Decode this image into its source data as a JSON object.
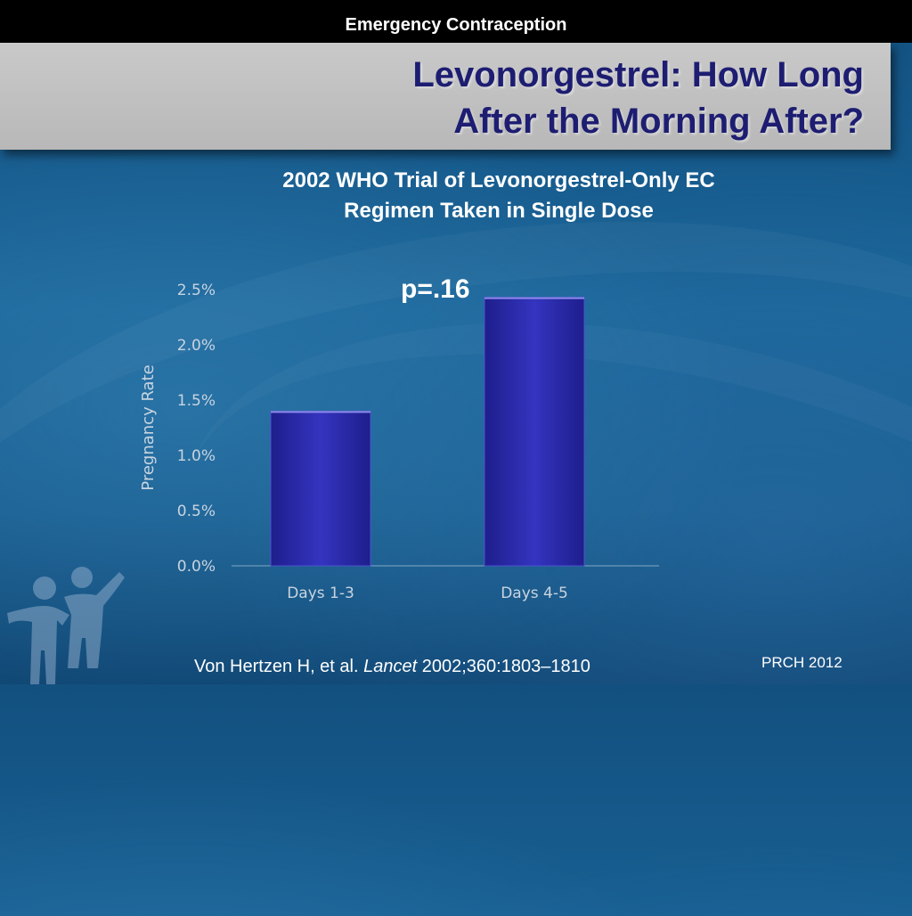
{
  "header": {
    "section": "Emergency Contraception",
    "title_line1": "Levonorgestrel: How Long",
    "title_line2": "After the Morning After?"
  },
  "chart_data": {
    "type": "bar",
    "title": "2002 WHO Trial of Levonorgestrel-Only EC Regimen Taken in Single Dose",
    "title_line1": "2002 WHO Trial of Levonorgestrel-Only EC",
    "title_line2": "Regimen Taken in Single Dose",
    "annotation": "p=.16",
    "categories": [
      "Days 1-3",
      "Days 4-5"
    ],
    "values": [
      1.4,
      2.43
    ],
    "ylabel": "Pregnancy Rate",
    "xlabel": "",
    "ylim": [
      0,
      2.5
    ],
    "yticks": [
      "0.0%",
      "0.5%",
      "1.0%",
      "1.5%",
      "2.0%",
      "2.5%"
    ],
    "ytick_values": [
      0,
      0.5,
      1.0,
      1.5,
      2.0,
      2.5
    ],
    "grid": false,
    "bar_color": "#2a2aa8",
    "text_color": "#c8d4e0"
  },
  "footer": {
    "citation_authors": "Von Hertzen H, et al. ",
    "citation_journal": "Lancet",
    "citation_details": " 2002;360:1803–1810",
    "credit": "PRCH 2012"
  },
  "logo_icon": "family-figures-icon"
}
